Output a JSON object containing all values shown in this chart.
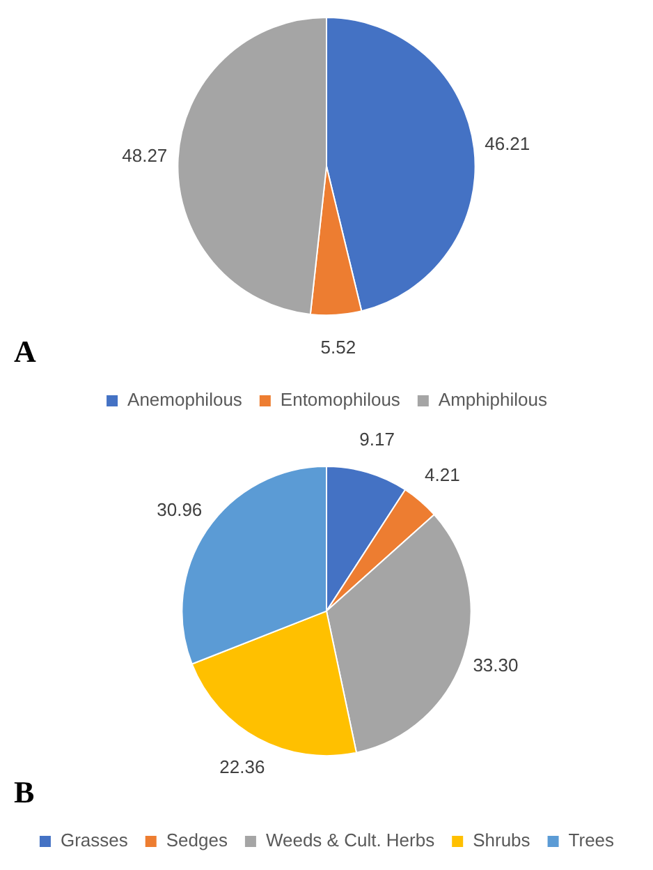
{
  "chart_data": [
    {
      "type": "pie",
      "title": "A",
      "categories": [
        "Anemophilous",
        "Entomophilous",
        "Amphiphilous"
      ],
      "values": [
        46.21,
        5.52,
        48.27
      ],
      "value_labels": [
        "46.21",
        "5.52",
        "48.27"
      ],
      "colors": [
        "#4472c4",
        "#ed7d31",
        "#a5a5a5"
      ],
      "legend": "bottom"
    },
    {
      "type": "pie",
      "title": "B",
      "categories": [
        "Grasses",
        "Sedges",
        "Weeds & Cult. Herbs",
        "Shrubs",
        "Trees"
      ],
      "values": [
        9.17,
        4.21,
        33.3,
        22.36,
        30.96
      ],
      "value_labels": [
        "9.17",
        "4.21",
        "33.30",
        "22.36",
        "30.96"
      ],
      "colors": [
        "#4472c4",
        "#ed7d31",
        "#a5a5a5",
        "#ffc000",
        "#5b9bd5"
      ],
      "legend": "bottom"
    }
  ]
}
